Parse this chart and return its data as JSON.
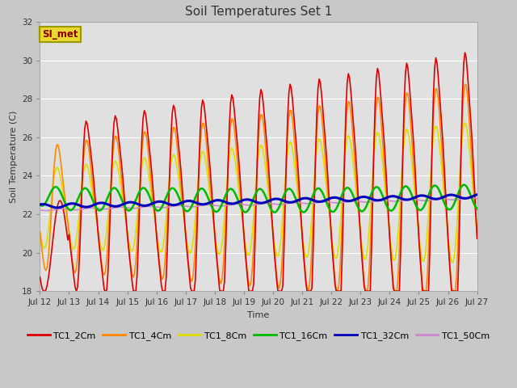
{
  "title": "Soil Temperatures Set 1",
  "xlabel": "Time",
  "ylabel": "Soil Temperature (C)",
  "ylim": [
    18,
    32
  ],
  "annotation_text": "SI_met",
  "annotation_color": "#8B0000",
  "annotation_bg": "#e8d830",
  "annotation_border": "#999900",
  "series": {
    "TC1_2Cm": {
      "color": "#dd0000",
      "lw": 1.2
    },
    "TC1_4Cm": {
      "color": "#ff8800",
      "lw": 1.2
    },
    "TC1_8Cm": {
      "color": "#dddd00",
      "lw": 1.2
    },
    "TC1_16Cm": {
      "color": "#00bb00",
      "lw": 1.8
    },
    "TC1_32Cm": {
      "color": "#0000bb",
      "lw": 2.2
    },
    "TC1_50Cm": {
      "color": "#cc88cc",
      "lw": 1.2
    }
  },
  "tick_labels": [
    "Jul 12",
    "Jul 13",
    "Jul 14",
    "Jul 15",
    "Jul 16",
    "Jul 17",
    "Jul 18",
    "Jul 19",
    "Jul 20",
    "Jul 21",
    "Jul 22",
    "Jul 23",
    "Jul 24",
    "Jul 25",
    "Jul 26",
    "Jul 27"
  ],
  "yticks": [
    18,
    20,
    22,
    24,
    26,
    28,
    30,
    32
  ],
  "gridcolor": "#ffffff",
  "fig_bg": "#c8c8c8",
  "ax_bg": "#e0e0e0",
  "title_fontsize": 11,
  "axis_fontsize": 8,
  "tick_fontsize": 7.5
}
